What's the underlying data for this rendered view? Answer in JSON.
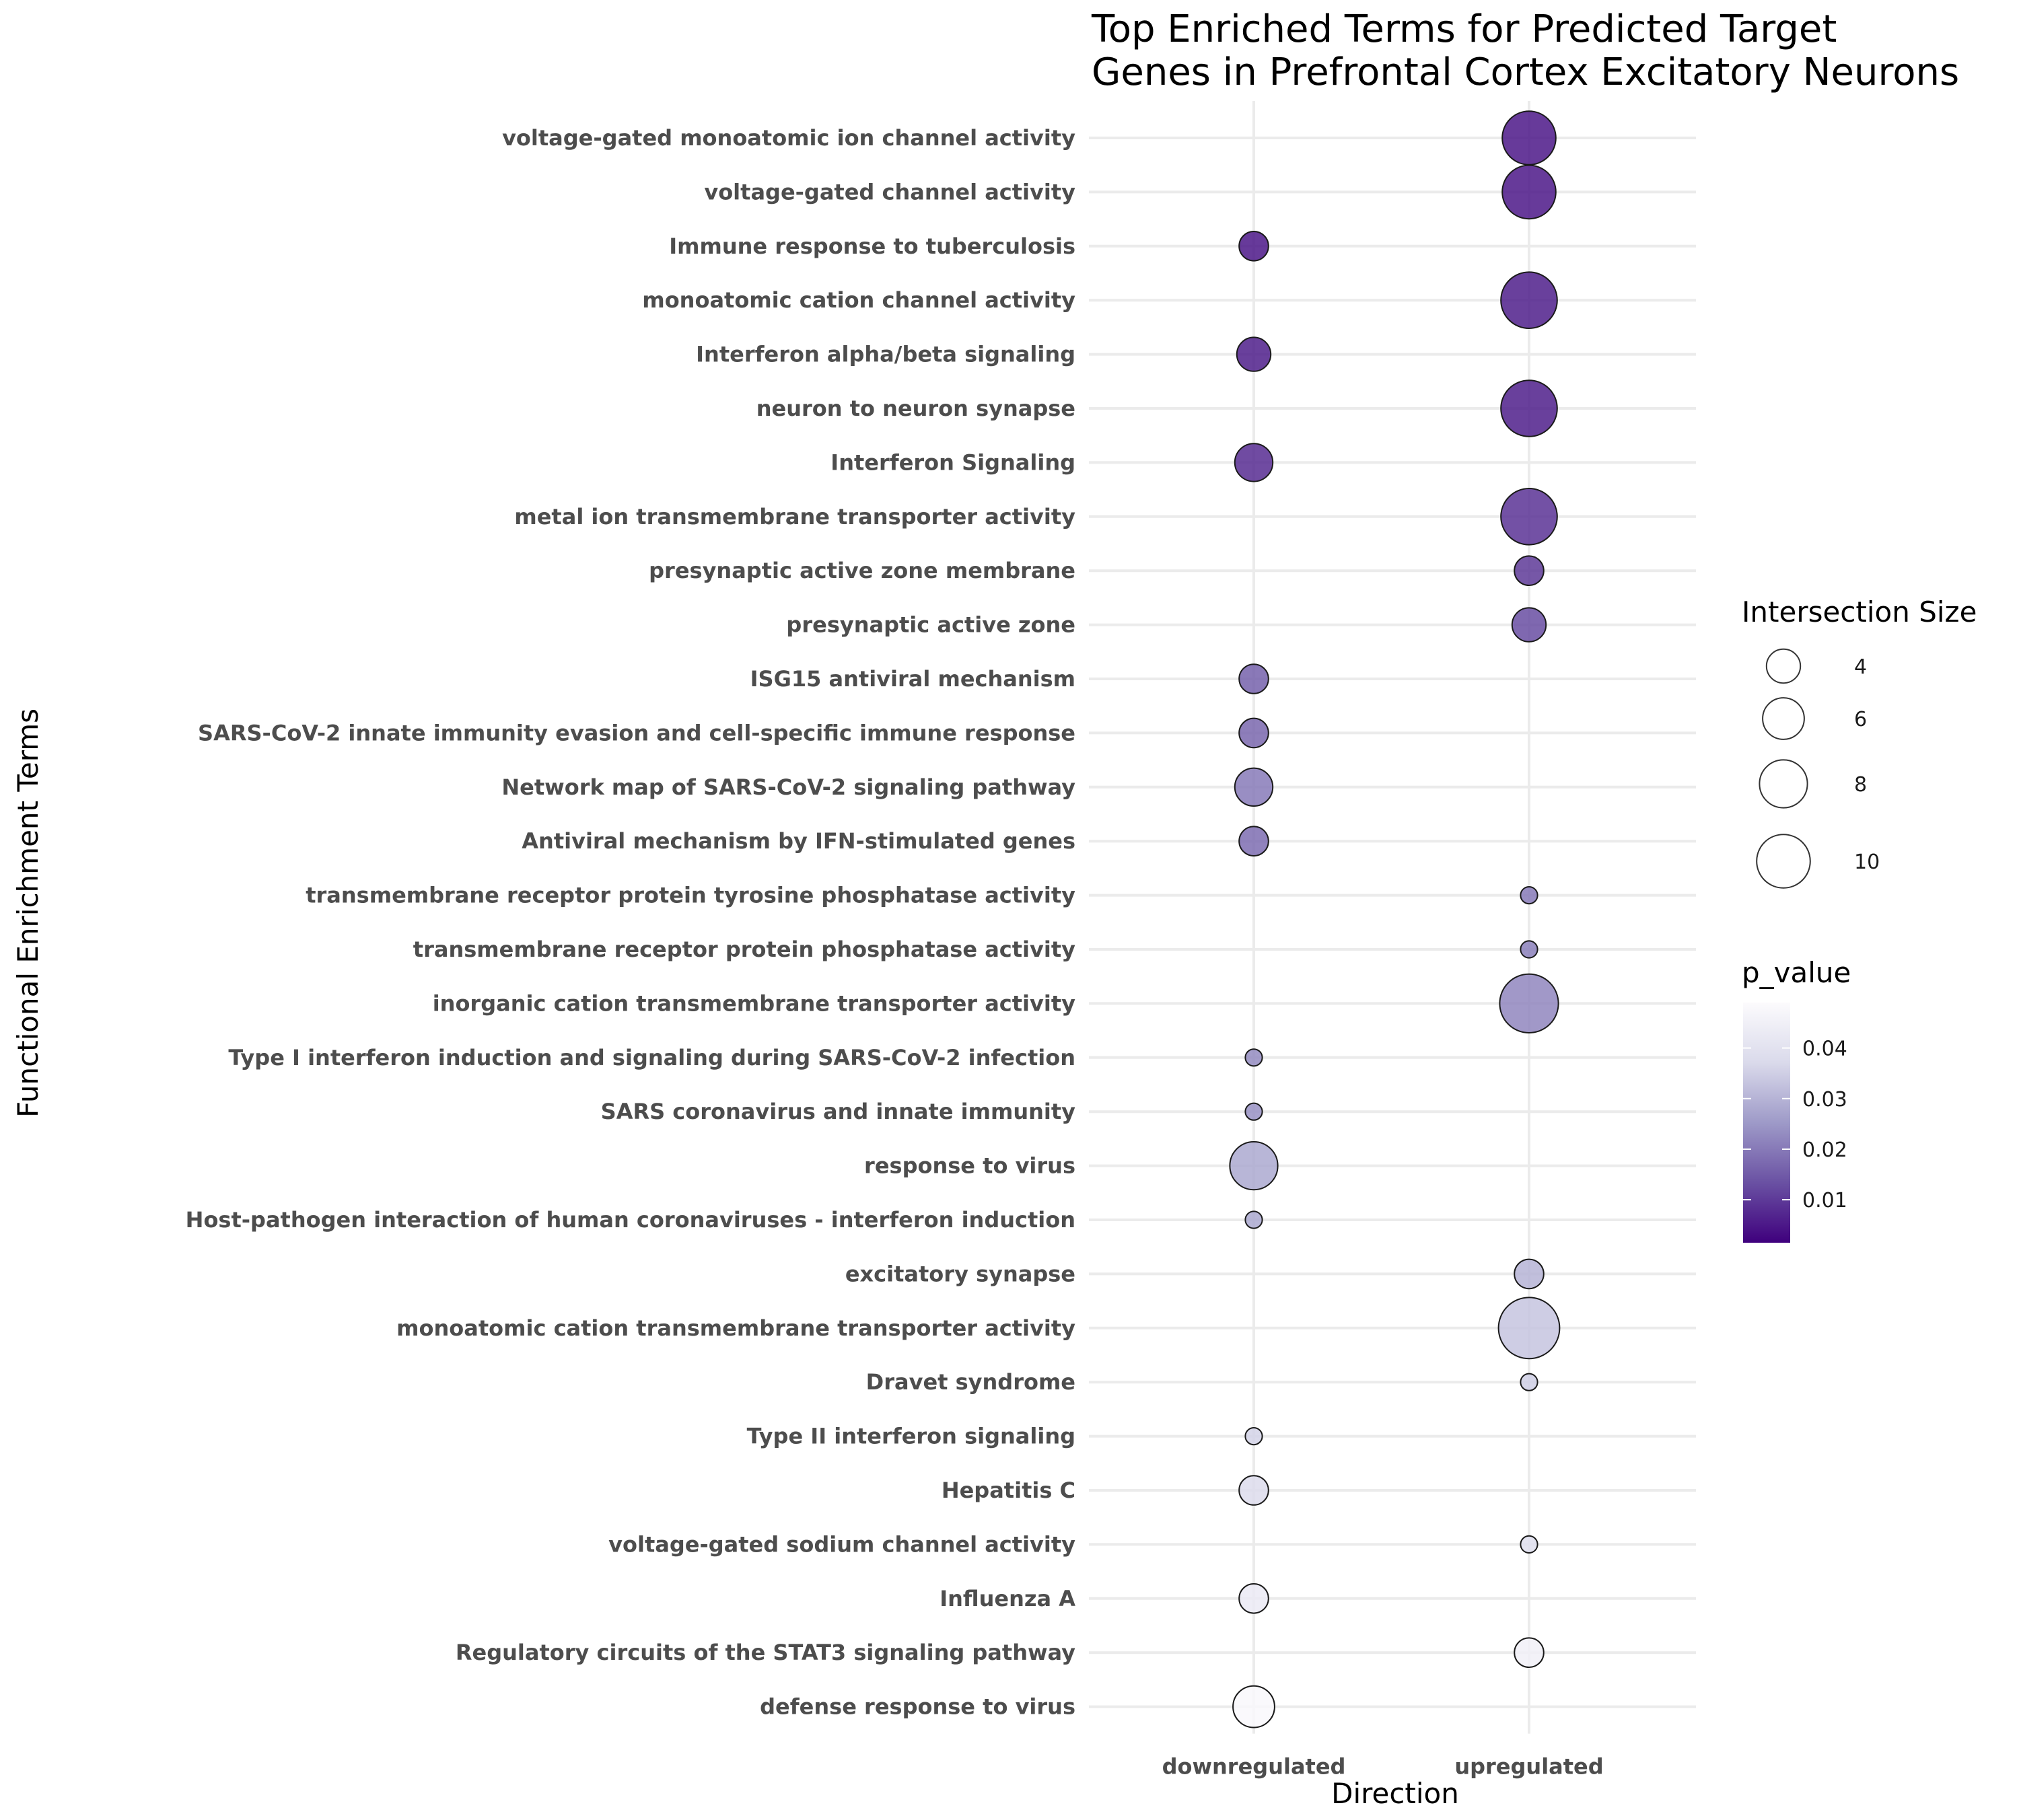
{
  "chart_data": {
    "type": "bubble",
    "title_lines": [
      "Top Enriched Terms for Predicted Target",
      "Genes in Prefrontal Cortex Excitatory Neurons"
    ],
    "xlabel": "Direction",
    "ylabel": "Functional Enrichment Terms",
    "categories_x": [
      "downregulated",
      "upregulated"
    ],
    "size_legend": {
      "title": "Intersection Size",
      "values": [
        4,
        6,
        8,
        10
      ],
      "labels": [
        "4",
        "6",
        "8",
        "10"
      ]
    },
    "color_legend": {
      "title": "p_value",
      "domain": [
        0.0015,
        0.049
      ],
      "ticks": [
        0.01,
        0.02,
        0.03,
        0.04
      ],
      "tick_labels": [
        "0.01",
        "0.02",
        "0.03",
        "0.04"
      ],
      "colors_low_to_high": [
        "#3f007d",
        "#6a51a3",
        "#9e9ac8",
        "#dadaeb",
        "#fcfbfd"
      ]
    },
    "points": [
      {
        "term": "voltage-gated monoatomic ion channel activity",
        "direction": "upregulated",
        "size": 10,
        "p_value": 0.005
      },
      {
        "term": "voltage-gated channel activity",
        "direction": "upregulated",
        "size": 10,
        "p_value": 0.005
      },
      {
        "term": "Immune response to tuberculosis",
        "direction": "downregulated",
        "size": 3,
        "p_value": 0.005
      },
      {
        "term": "monoatomic cation channel activity",
        "direction": "upregulated",
        "size": 11,
        "p_value": 0.006
      },
      {
        "term": "Interferon alpha/beta signaling",
        "direction": "downregulated",
        "size": 4,
        "p_value": 0.006
      },
      {
        "term": "neuron to neuron synapse",
        "direction": "upregulated",
        "size": 11,
        "p_value": 0.006
      },
      {
        "term": "Interferon Signaling",
        "direction": "downregulated",
        "size": 5,
        "p_value": 0.008
      },
      {
        "term": "metal ion transmembrane transporter activity",
        "direction": "upregulated",
        "size": 11,
        "p_value": 0.009
      },
      {
        "term": "presynaptic active zone membrane",
        "direction": "upregulated",
        "size": 3,
        "p_value": 0.01
      },
      {
        "term": "presynaptic active zone",
        "direction": "upregulated",
        "size": 4,
        "p_value": 0.013
      },
      {
        "term": "ISG15 antiviral mechanism",
        "direction": "downregulated",
        "size": 3,
        "p_value": 0.016
      },
      {
        "term": "SARS-CoV-2 innate immunity evasion and cell-specific immune response",
        "direction": "downregulated",
        "size": 3,
        "p_value": 0.017
      },
      {
        "term": "Network map of SARS-CoV-2 signaling pathway",
        "direction": "downregulated",
        "size": 5,
        "p_value": 0.02
      },
      {
        "term": "Antiviral mechanism by IFN-stimulated genes",
        "direction": "downregulated",
        "size": 3,
        "p_value": 0.018
      },
      {
        "term": "transmembrane receptor protein tyrosine phosphatase activity",
        "direction": "upregulated",
        "size": 1,
        "p_value": 0.02
      },
      {
        "term": "transmembrane receptor protein phosphatase activity",
        "direction": "upregulated",
        "size": 1,
        "p_value": 0.021
      },
      {
        "term": "inorganic cation transmembrane transporter activity",
        "direction": "upregulated",
        "size": 12,
        "p_value": 0.022
      },
      {
        "term": "Type I interferon induction and signaling during SARS-CoV-2 infection",
        "direction": "downregulated",
        "size": 1,
        "p_value": 0.023
      },
      {
        "term": "SARS coronavirus and innate immunity",
        "direction": "downregulated",
        "size": 1,
        "p_value": 0.024
      },
      {
        "term": "response to virus",
        "direction": "downregulated",
        "size": 8,
        "p_value": 0.028
      },
      {
        "term": "Host-pathogen interaction of human coronaviruses - interferon induction",
        "direction": "downregulated",
        "size": 1,
        "p_value": 0.028
      },
      {
        "term": "excitatory synapse",
        "direction": "upregulated",
        "size": 3,
        "p_value": 0.03
      },
      {
        "term": "monoatomic cation transmembrane transporter activity",
        "direction": "upregulated",
        "size": 13,
        "p_value": 0.033
      },
      {
        "term": "Dravet syndrome",
        "direction": "upregulated",
        "size": 1,
        "p_value": 0.035
      },
      {
        "term": "Type II interferon signaling",
        "direction": "downregulated",
        "size": 1,
        "p_value": 0.036
      },
      {
        "term": "Hepatitis C",
        "direction": "downregulated",
        "size": 3,
        "p_value": 0.038
      },
      {
        "term": "voltage-gated sodium channel activity",
        "direction": "upregulated",
        "size": 1,
        "p_value": 0.039
      },
      {
        "term": "Influenza A",
        "direction": "downregulated",
        "size": 3,
        "p_value": 0.043
      },
      {
        "term": "Regulatory circuits of the STAT3 signaling pathway",
        "direction": "upregulated",
        "size": 3,
        "p_value": 0.045
      },
      {
        "term": "defense response to virus",
        "direction": "downregulated",
        "size": 6,
        "p_value": 0.048
      }
    ]
  }
}
